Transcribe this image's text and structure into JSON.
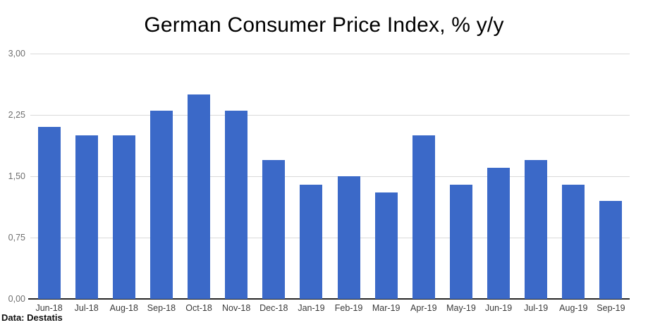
{
  "chart": {
    "title": "German Consumer Price Index, % y/y",
    "source_note": "Data: Destatis"
  },
  "chart_data": {
    "type": "bar",
    "title": "German Consumer Price Index, % y/y",
    "categories": [
      "Jun-18",
      "Jul-18",
      "Aug-18",
      "Sep-18",
      "Oct-18",
      "Nov-18",
      "Dec-18",
      "Jan-19",
      "Feb-19",
      "Mar-19",
      "Apr-19",
      "May-19",
      "Jun-19",
      "Jul-19",
      "Aug-19",
      "Sep-19"
    ],
    "values": [
      2.1,
      2.0,
      2.0,
      2.3,
      2.5,
      2.3,
      1.7,
      1.4,
      1.5,
      1.3,
      2.0,
      1.4,
      1.6,
      1.7,
      1.4,
      1.2
    ],
    "ylabel": "",
    "xlabel": "",
    "ylim": [
      0,
      3
    ],
    "yticks": [
      {
        "label": "0,00",
        "value": 0
      },
      {
        "label": "0,75",
        "value": 0.75
      },
      {
        "label": "1,50",
        "value": 1.5
      },
      {
        "label": "2,25",
        "value": 2.25
      },
      {
        "label": "3,00",
        "value": 3
      }
    ],
    "grid": true,
    "legend": "none",
    "source": "Data: Destatis"
  },
  "colors": {
    "bar": "#3b69c8",
    "gridline": "#d9d9d9",
    "axis_line": "#262626",
    "title": "#000000",
    "y_tick_label": "#6e6e6e",
    "x_tick_label": "#3a3a3a"
  }
}
